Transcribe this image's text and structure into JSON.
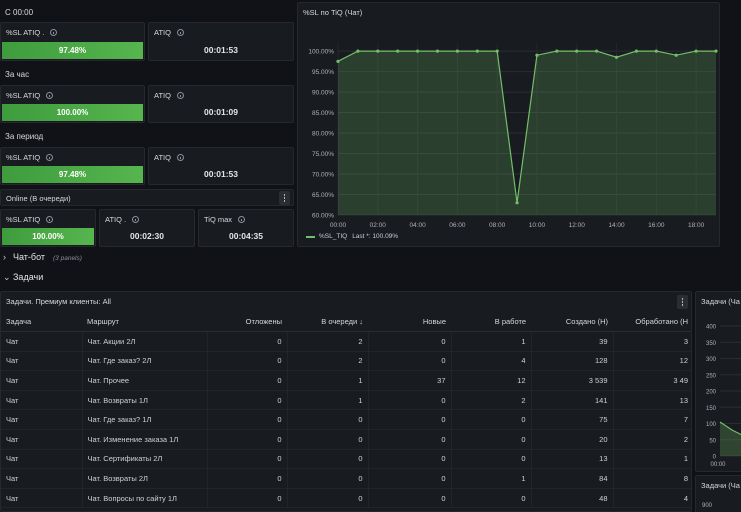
{
  "groups": {
    "since_midnight": "С 00:00",
    "last_hour": "За час",
    "period": "За период"
  },
  "stat_panels": {
    "r1_sl_title": "%SL ATIQ .",
    "r1_sl_value": "97.48%",
    "r1_atiq_title": "ATIQ",
    "r1_atiq_value": "00:01:53",
    "r2_sl_title": "%SL ATIQ",
    "r2_sl_value": "100.00%",
    "r2_atiq_title": "ATIQ",
    "r2_atiq_value": "00:01:09",
    "r3_sl_title": "%SL ATIQ",
    "r3_sl_value": "97.48%",
    "r3_atiq_title": "ATIQ",
    "r3_atiq_value": "00:01:53"
  },
  "online": {
    "title": "Online (В очереди)",
    "sl_title": "%SL ATIQ",
    "sl_value": "100.00%",
    "atiq_title": "ATIQ .",
    "atiq_value": "00:02:30",
    "tiq_title": "TiQ max",
    "tiq_value": "00:04:35"
  },
  "chart_panel": {
    "title": "%SL по TiQ (Чат)",
    "legend_series": "%SL_TIQ",
    "legend_last": "Last *: 100.09%"
  },
  "chart_data": {
    "type": "area",
    "title": "%SL по TiQ (Чат)",
    "xlabel": "",
    "ylabel": "",
    "x_ticks": [
      "00:00",
      "02:00",
      "04:00",
      "06:00",
      "08:00",
      "10:00",
      "12:00",
      "14:00",
      "16:00",
      "18:00"
    ],
    "y_ticks": [
      "100.00%",
      "95.00%",
      "90.00%",
      "85.00%",
      "80.00%",
      "75.00%",
      "70.00%",
      "65.00%",
      "60.00%"
    ],
    "ylim": [
      60,
      101
    ],
    "xlim": [
      0,
      19
    ],
    "grid": true,
    "legend_placement": "bottom-left",
    "series": [
      {
        "name": "%SL_TIQ",
        "color": "#73bf69",
        "x": [
          0,
          1,
          2,
          3,
          4,
          5,
          6,
          7,
          8,
          9,
          10,
          11,
          12,
          13,
          14,
          15,
          16,
          17,
          18,
          19
        ],
        "y": [
          97.5,
          100,
          100,
          100,
          100,
          100,
          100,
          100,
          100,
          63,
          99,
          100,
          100,
          100,
          98.5,
          100,
          100,
          99,
          100,
          100
        ]
      }
    ]
  },
  "rows": {
    "chatbot": "Чат-бот",
    "chatbot_sub": "(3 panels)",
    "tasks": "Задачи"
  },
  "table_panel": {
    "title": "Задачи. Премиум клиенты: All",
    "headers": [
      "Задача",
      "Маршрут",
      "Отложены",
      "В очереди",
      "Новые",
      "В работе",
      "Создано (Н)",
      "Обработано (Н"
    ],
    "sort_glyph": "↓",
    "rows": [
      [
        "Чат",
        "Чат. Акции 2Л",
        "0",
        "2",
        "0",
        "1",
        "39",
        "3"
      ],
      [
        "Чат",
        "Чат. Где заказ? 2Л",
        "0",
        "2",
        "0",
        "4",
        "128",
        "12"
      ],
      [
        "Чат",
        "Чат. Прочее",
        "0",
        "1",
        "37",
        "12",
        "3 539",
        "3 49"
      ],
      [
        "Чат",
        "Чат. Возвраты 1Л",
        "0",
        "1",
        "0",
        "2",
        "141",
        "13"
      ],
      [
        "Чат",
        "Чат. Где заказ? 1Л",
        "0",
        "0",
        "0",
        "0",
        "75",
        "7"
      ],
      [
        "Чат",
        "Чат. Изменение заказа 1Л",
        "0",
        "0",
        "0",
        "0",
        "20",
        "2"
      ],
      [
        "Чат",
        "Чат. Сертификаты 2Л",
        "0",
        "0",
        "0",
        "0",
        "13",
        "1"
      ],
      [
        "Чат",
        "Чат. Возвраты 2Л",
        "0",
        "0",
        "0",
        "1",
        "84",
        "8"
      ],
      [
        "Чат",
        "Чат. Вопросы по сайту 1Л",
        "0",
        "0",
        "0",
        "0",
        "48",
        "4"
      ]
    ]
  },
  "right_mini": {
    "title_top": "Задачи (Ча",
    "y_ticks_top": [
      "400",
      "350",
      "300",
      "250",
      "200",
      "150",
      "100",
      "50",
      "0"
    ],
    "x_tick_top": "00:00",
    "title_bottom": "Задачи (Ча",
    "y_tick_bottom": "900"
  },
  "colors": {
    "background": "#111217",
    "panel": "#181b1f",
    "border": "#26282d",
    "green": "#56b54d",
    "series": "#73bf69"
  }
}
